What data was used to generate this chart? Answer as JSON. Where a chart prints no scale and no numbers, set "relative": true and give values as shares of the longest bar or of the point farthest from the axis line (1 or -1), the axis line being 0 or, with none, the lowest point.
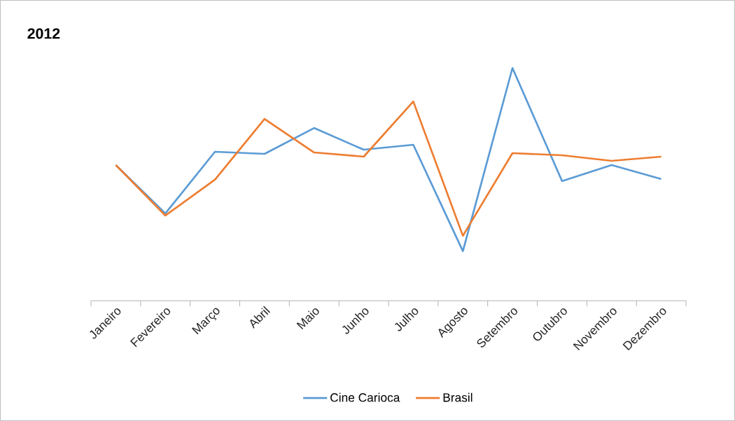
{
  "chart_data": {
    "type": "line",
    "title": "2012",
    "relative": true,
    "legend": "bottom",
    "marker": "none",
    "line_style": "solid",
    "categories": [
      "Janeiro",
      "Fevereiro",
      "Março",
      "Abril",
      "Maio",
      "Junho",
      "Julho",
      "Agosto",
      "Setembro",
      "Outubro",
      "Novembro",
      "Dezembro"
    ],
    "series": [
      {
        "name": "Cine Carioca",
        "color": "#5b9bd5",
        "values": [
          0.583,
          0.375,
          0.64,
          0.631,
          0.742,
          0.649,
          0.67,
          0.213,
          1.0,
          0.514,
          0.583,
          0.523
        ]
      },
      {
        "name": "Brasil",
        "color": "#ed7d31",
        "values": [
          0.583,
          0.366,
          0.52,
          0.781,
          0.637,
          0.619,
          0.856,
          0.279,
          0.634,
          0.625,
          0.601,
          0.619
        ]
      }
    ]
  }
}
